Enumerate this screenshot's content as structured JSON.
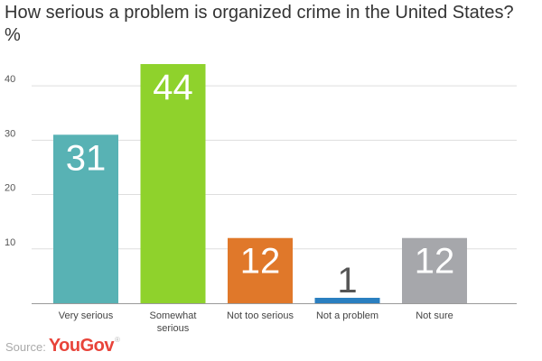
{
  "chart_data": {
    "type": "bar",
    "title": "How serious a problem is organized crime in the United States? %",
    "categories": [
      "Very serious",
      "Somewhat serious",
      "Not too serious",
      "Not a problem",
      "Not sure"
    ],
    "category_lines": [
      [
        "Very serious"
      ],
      [
        "Somewhat",
        "serious"
      ],
      [
        "Not too serious"
      ],
      [
        "Not a problem"
      ],
      [
        "Not sure"
      ]
    ],
    "values": [
      31,
      44,
      12,
      1,
      12
    ],
    "data_labels": [
      "31",
      "44",
      "12",
      "1",
      "12"
    ],
    "colors": [
      "#58b2b4",
      "#8fd22c",
      "#e0782a",
      "#2a7fc0",
      "#a6a7ab"
    ],
    "label_colors": [
      "#ffffff",
      "#ffffff",
      "#ffffff",
      "#555555",
      "#ffffff"
    ],
    "yticks": [
      "10",
      "20",
      "30",
      "40"
    ],
    "ylim": [
      0,
      44
    ],
    "grid": true,
    "legend": "none"
  },
  "source": {
    "label": "Source:",
    "brand": "YouGov",
    "brand_mark": "®"
  }
}
